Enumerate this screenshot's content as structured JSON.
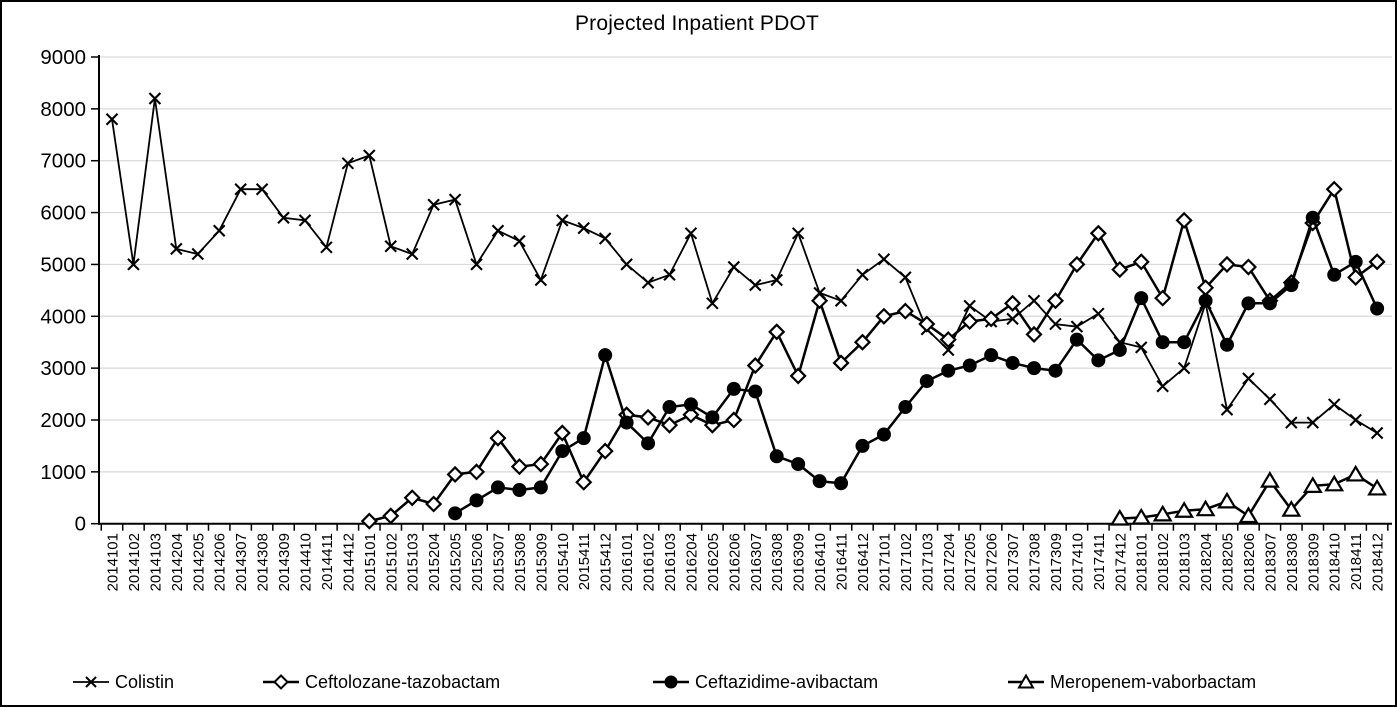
{
  "title": "Projected Inpatient PDOT",
  "chart_data": {
    "type": "line",
    "title": "Projected Inpatient PDOT",
    "grid": true,
    "legend_position": "bottom",
    "background_color": "#FFFFFF",
    "gridline_color": "#D9D9D9",
    "axis_color": "#000000",
    "series_color": "#000000",
    "y_axis": {
      "min": 0,
      "max": 9000,
      "step": 1000,
      "ticks": [
        0,
        1000,
        2000,
        3000,
        4000,
        5000,
        6000,
        7000,
        8000,
        9000
      ]
    },
    "x_labels": [
      "2014101",
      "2014102",
      "2014103",
      "2014204",
      "2014205",
      "2014206",
      "2014307",
      "2014308",
      "2014309",
      "2014410",
      "2014411",
      "2014412",
      "2015101",
      "2015102",
      "2015103",
      "2015204",
      "2015205",
      "2015206",
      "2015307",
      "2015308",
      "2015309",
      "2015410",
      "2015411",
      "2015412",
      "2016101",
      "2016102",
      "2016103",
      "2016204",
      "2016205",
      "2016206",
      "2016307",
      "2016308",
      "2016309",
      "2016410",
      "2016411",
      "2016412",
      "2017101",
      "2017102",
      "2017103",
      "2017204",
      "2017205",
      "2017206",
      "2017307",
      "2017308",
      "2017309",
      "2017410",
      "2017411",
      "2017412",
      "2018101",
      "2018102",
      "2018103",
      "2018204",
      "2018205",
      "2018206",
      "2018307",
      "2018308",
      "2018309",
      "2018410",
      "2018411",
      "2018412"
    ],
    "series": [
      {
        "name": "Colistin",
        "marker": "x-cross",
        "values": [
          7800,
          5000,
          8200,
          5300,
          5200,
          5650,
          6450,
          6450,
          5900,
          5850,
          5330,
          6950,
          7100,
          5350,
          5200,
          6150,
          6250,
          5000,
          5650,
          5450,
          4700,
          5850,
          5700,
          5500,
          5000,
          4650,
          4800,
          5600,
          4250,
          4950,
          4600,
          4700,
          5600,
          4450,
          4300,
          4800,
          5100,
          4750,
          3750,
          3350,
          4200,
          3900,
          3950,
          4300,
          3850,
          3800,
          4050,
          3500,
          3400,
          2650,
          3000,
          4250,
          2200,
          2800,
          2400,
          1950,
          1950,
          2300,
          2000,
          1750
        ]
      },
      {
        "name": "Ceftolozane-tazobactam",
        "marker": "diamond-open",
        "values": [
          null,
          null,
          null,
          null,
          null,
          null,
          null,
          null,
          null,
          null,
          null,
          null,
          50,
          150,
          500,
          380,
          950,
          1000,
          1650,
          1100,
          1150,
          1750,
          800,
          1400,
          2100,
          2050,
          1900,
          2100,
          1900,
          2000,
          3050,
          3700,
          2850,
          4300,
          3100,
          3500,
          4000,
          4100,
          3850,
          3550,
          3900,
          3950,
          4250,
          3650,
          4300,
          5000,
          5600,
          4900,
          5050,
          4350,
          5850,
          4550,
          5000,
          4950,
          4300,
          4650,
          5800,
          6450,
          4750,
          5050
        ]
      },
      {
        "name": "Ceftazidime-avibactam",
        "marker": "circle-filled",
        "values": [
          null,
          null,
          null,
          null,
          null,
          null,
          null,
          null,
          null,
          null,
          null,
          null,
          null,
          null,
          null,
          null,
          200,
          450,
          700,
          650,
          700,
          1400,
          1650,
          3250,
          1950,
          1550,
          2250,
          2300,
          2050,
          2600,
          2550,
          1300,
          1150,
          820,
          780,
          1500,
          1720,
          2250,
          2750,
          2950,
          3050,
          3250,
          3100,
          3000,
          2950,
          3550,
          3150,
          3350,
          4350,
          3500,
          3500,
          4300,
          3450,
          4250,
          4250,
          4600,
          5900,
          4800,
          5050,
          4150
        ]
      },
      {
        "name": "Meropenem-vaborbactam",
        "marker": "triangle-open",
        "values": [
          null,
          null,
          null,
          null,
          null,
          null,
          null,
          null,
          null,
          null,
          null,
          null,
          null,
          null,
          null,
          null,
          null,
          null,
          null,
          null,
          null,
          null,
          null,
          null,
          null,
          null,
          null,
          null,
          null,
          null,
          null,
          null,
          null,
          null,
          null,
          null,
          null,
          null,
          null,
          null,
          null,
          null,
          null,
          null,
          null,
          null,
          null,
          100,
          120,
          180,
          250,
          280,
          430,
          150,
          830,
          270,
          730,
          760,
          950,
          680
        ]
      }
    ]
  }
}
